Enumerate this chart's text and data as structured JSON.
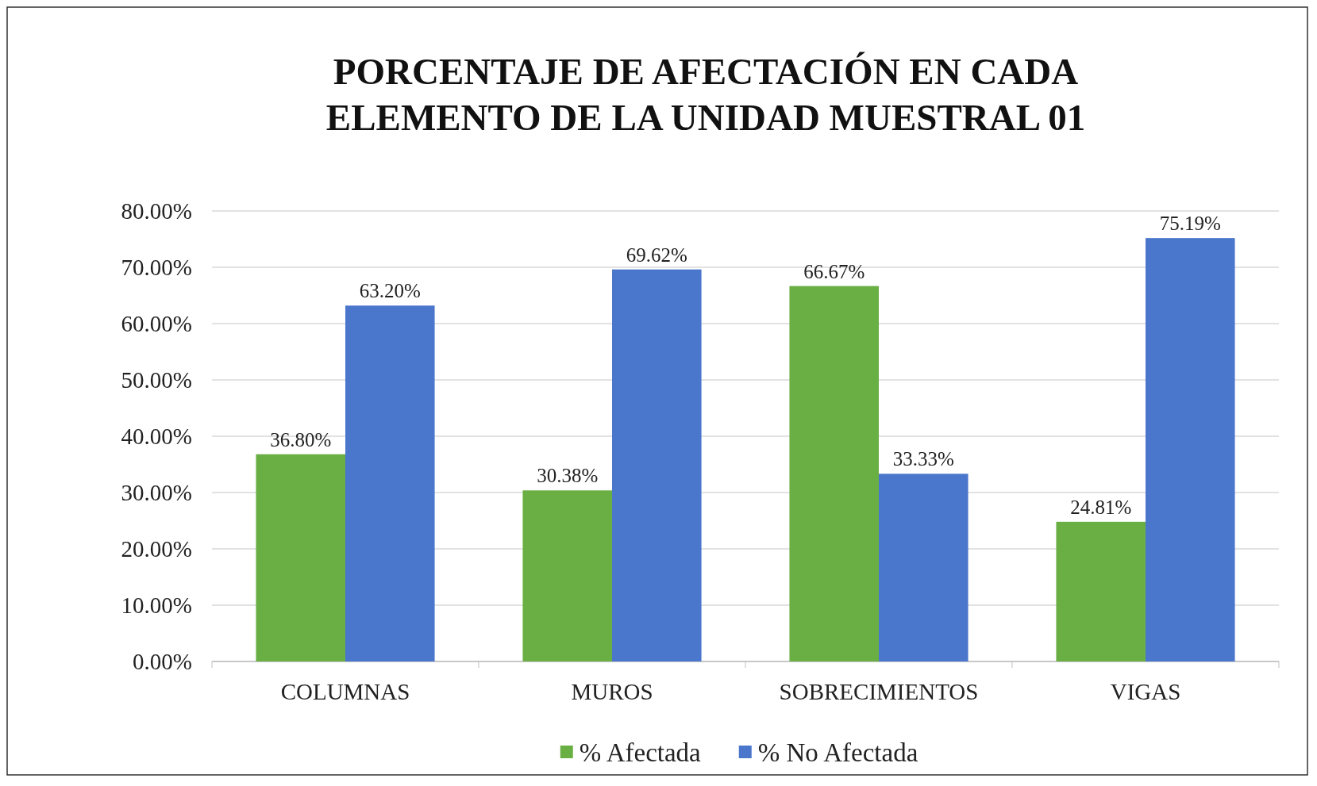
{
  "chart_data": {
    "type": "bar",
    "title": "PORCENTAJE DE AFECTACIÓN EN CADA ELEMENTO DE LA UNIDAD MUESTRAL 01",
    "categories": [
      "COLUMNAS",
      "MUROS",
      "SOBRECIMIENTOS",
      "VIGAS"
    ],
    "series": [
      {
        "name": "% Afectada",
        "color": "#6aaf44",
        "values": [
          36.8,
          30.38,
          66.67,
          24.81
        ],
        "value_labels": [
          "36.80%",
          "30.38%",
          "66.67%",
          "24.81%"
        ]
      },
      {
        "name": "% No Afectada",
        "color": "#4a76cc",
        "values": [
          63.2,
          69.62,
          33.33,
          75.19
        ],
        "value_labels": [
          "63.20%",
          "69.62%",
          "33.33%",
          "75.19%"
        ]
      }
    ],
    "ylim": [
      0,
      80
    ],
    "yticks": [
      {
        "value": 0,
        "label": "0.00%"
      },
      {
        "value": 10,
        "label": "10.00%"
      },
      {
        "value": 20,
        "label": "20.00%"
      },
      {
        "value": 30,
        "label": "30.00%"
      },
      {
        "value": 40,
        "label": "40.00%"
      },
      {
        "value": 50,
        "label": "50.00%"
      },
      {
        "value": 60,
        "label": "60.00%"
      },
      {
        "value": 70,
        "label": "70.00%"
      },
      {
        "value": 80,
        "label": "80.00%"
      }
    ],
    "grid": "y",
    "legend": "bottom"
  }
}
